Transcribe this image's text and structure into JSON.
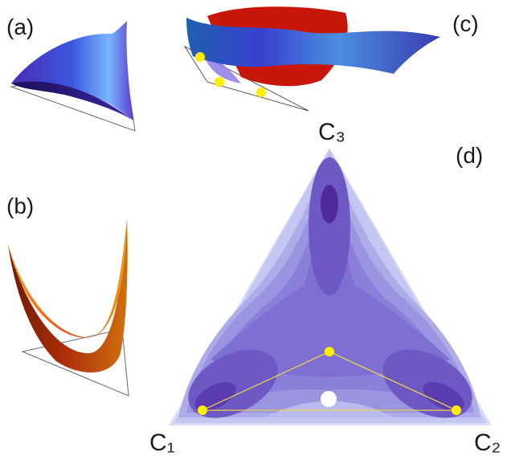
{
  "panels": {
    "a": "(a)",
    "b": "(b)",
    "c": "(c)",
    "d": "(d)"
  },
  "vertices": {
    "c1": "C₁",
    "c2": "C₂",
    "c3": "C₃"
  },
  "colors": {
    "contour_light": "#c9ccf2",
    "contour_mid": "#7f73d6",
    "contour_dark": "#4c2a9a",
    "surface_blue": "#3d3ad0",
    "surface_red": "#c8160a",
    "surface_orange": "#f07a10",
    "marker_yellow": "#ffee00",
    "marker_white": "#ffffff"
  }
}
